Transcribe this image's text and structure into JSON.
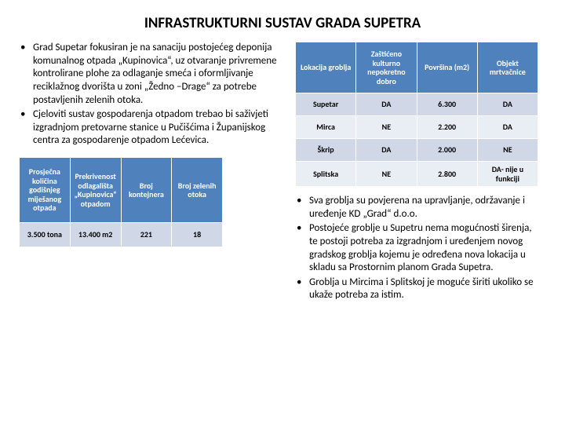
{
  "title": "INFRASTRUKTURNI SUSTAV GRADA SUPETRA",
  "left_bullets": [
    "Grad Supetar fokusiran je na sanaciju postojećeg deponija komunalnog otpada „Kupinovica“, uz otvaranje privremene kontrolirane plohe za odlaganje smeća i oformljivanje reciklažnog dvorišta u zoni „Žedno –Drage“ za potrebe postavljenih zelenih otoka.",
    "Cjeloviti sustav gospodarenja otpadom trebao bi saživjeti izgradnjom pretovarne stanice u Pučišćima i Županijskog centra za gospodarenje otpadom Lećevica."
  ],
  "left_table": {
    "type": "table",
    "header_bg": "#4f81bd",
    "header_fg": "#ffffff",
    "row_dark_bg": "#d0d8e8",
    "row_light_bg": "#e9edf4",
    "columns": [
      "Prosječna količina godišnjeg miješanog otpada",
      "Prekrivenost odlagališta „Kupinovica“ otpadom",
      "Broj kontejnera",
      "Broj zelenih otoka"
    ],
    "rows": [
      [
        "3.500 tona",
        "13.400 m2",
        "221",
        "18"
      ]
    ]
  },
  "right_table": {
    "type": "table",
    "header_bg": "#4f81bd",
    "header_fg": "#ffffff",
    "row_dark_bg": "#d0d8e8",
    "row_light_bg": "#e9edf4",
    "columns": [
      "Lokacija groblja",
      "Zaštićeno kulturno nepokretno dobro",
      "Površina (m2)",
      "Objekt mrtvačnice"
    ],
    "rows": [
      [
        "Supetar",
        "DA",
        "6.300",
        "DA"
      ],
      [
        "Mirca",
        "NE",
        "2.200",
        "DA"
      ],
      [
        "Škrip",
        "DA",
        "2.000",
        "NE"
      ],
      [
        "Splitska",
        "NE",
        "2.800",
        "DA- nije u funkciji"
      ]
    ]
  },
  "right_bullets": [
    "Sva groblja su povjerena na upravljanje, održavanje i uređenje KD „Grad“ d.o.o.",
    "Postojeće groblje u Supetru nema mogućnosti širenja, te postoji potreba za izgradnjom i uređenjem novog gradskog groblja kojemu je određena nova lokacija u skladu sa Prostornim planom Grada Supetra.",
    "Groblja u Mircima i Splitskoj je moguće širiti ukoliko se ukaže potreba za istim."
  ]
}
